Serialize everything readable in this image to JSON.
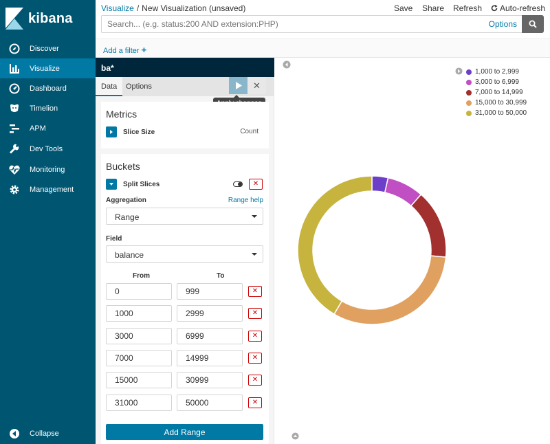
{
  "app": {
    "name": "kibana"
  },
  "sidebar": {
    "items": [
      {
        "label": "Discover",
        "icon": "compass-icon"
      },
      {
        "label": "Visualize",
        "icon": "bar-chart-icon",
        "active": true
      },
      {
        "label": "Dashboard",
        "icon": "dashboard-icon"
      },
      {
        "label": "Timelion",
        "icon": "timelion-icon"
      },
      {
        "label": "APM",
        "icon": "apm-icon"
      },
      {
        "label": "Dev Tools",
        "icon": "wrench-icon"
      },
      {
        "label": "Monitoring",
        "icon": "heartbeat-icon"
      },
      {
        "label": "Management",
        "icon": "gear-icon"
      }
    ],
    "collapse_label": "Collapse"
  },
  "header": {
    "breadcrumb_link": "Visualize",
    "breadcrumb_sep": "/",
    "breadcrumb_current": "New Visualization (unsaved)",
    "menu": [
      "Save",
      "Share",
      "Refresh",
      "Auto-refresh"
    ]
  },
  "search": {
    "placeholder": "Search... (e.g. status:200 AND extension:PHP)",
    "options_label": "Options"
  },
  "filters": {
    "add_label": "Add a filter"
  },
  "editor": {
    "index_title": "ba*",
    "tabs": [
      "Data",
      "Options"
    ],
    "tooltip": "Apply changes",
    "metrics": {
      "title": "Metrics",
      "agg_title": "Slice Size",
      "agg_value": "Count"
    },
    "buckets": {
      "title": "Buckets",
      "agg_title": "Split Slices",
      "aggregation_label": "Aggregation",
      "range_help": "Range help",
      "aggregation_value": "Range",
      "field_label": "Field",
      "field_value": "balance",
      "from_label": "From",
      "to_label": "To",
      "ranges": [
        {
          "from": "0",
          "to": "999"
        },
        {
          "from": "1000",
          "to": "2999"
        },
        {
          "from": "3000",
          "to": "6999"
        },
        {
          "from": "7000",
          "to": "14999"
        },
        {
          "from": "15000",
          "to": "30999"
        },
        {
          "from": "31000",
          "to": "50000"
        }
      ],
      "add_range_label": "Add Range"
    }
  },
  "chart_data": {
    "type": "pie",
    "donut": true,
    "categories": [
      "1,000 to 2,999",
      "3,000 to 6,999",
      "7,000 to 14,999",
      "15,000 to 30,999",
      "31,000 to 50,000"
    ],
    "values": [
      3.5,
      8,
      15,
      32,
      41.5
    ],
    "colors": [
      "#6c3fc9",
      "#c04fc4",
      "#a1302e",
      "#e0a05f",
      "#c6b43f"
    ],
    "legend": "top-right"
  }
}
